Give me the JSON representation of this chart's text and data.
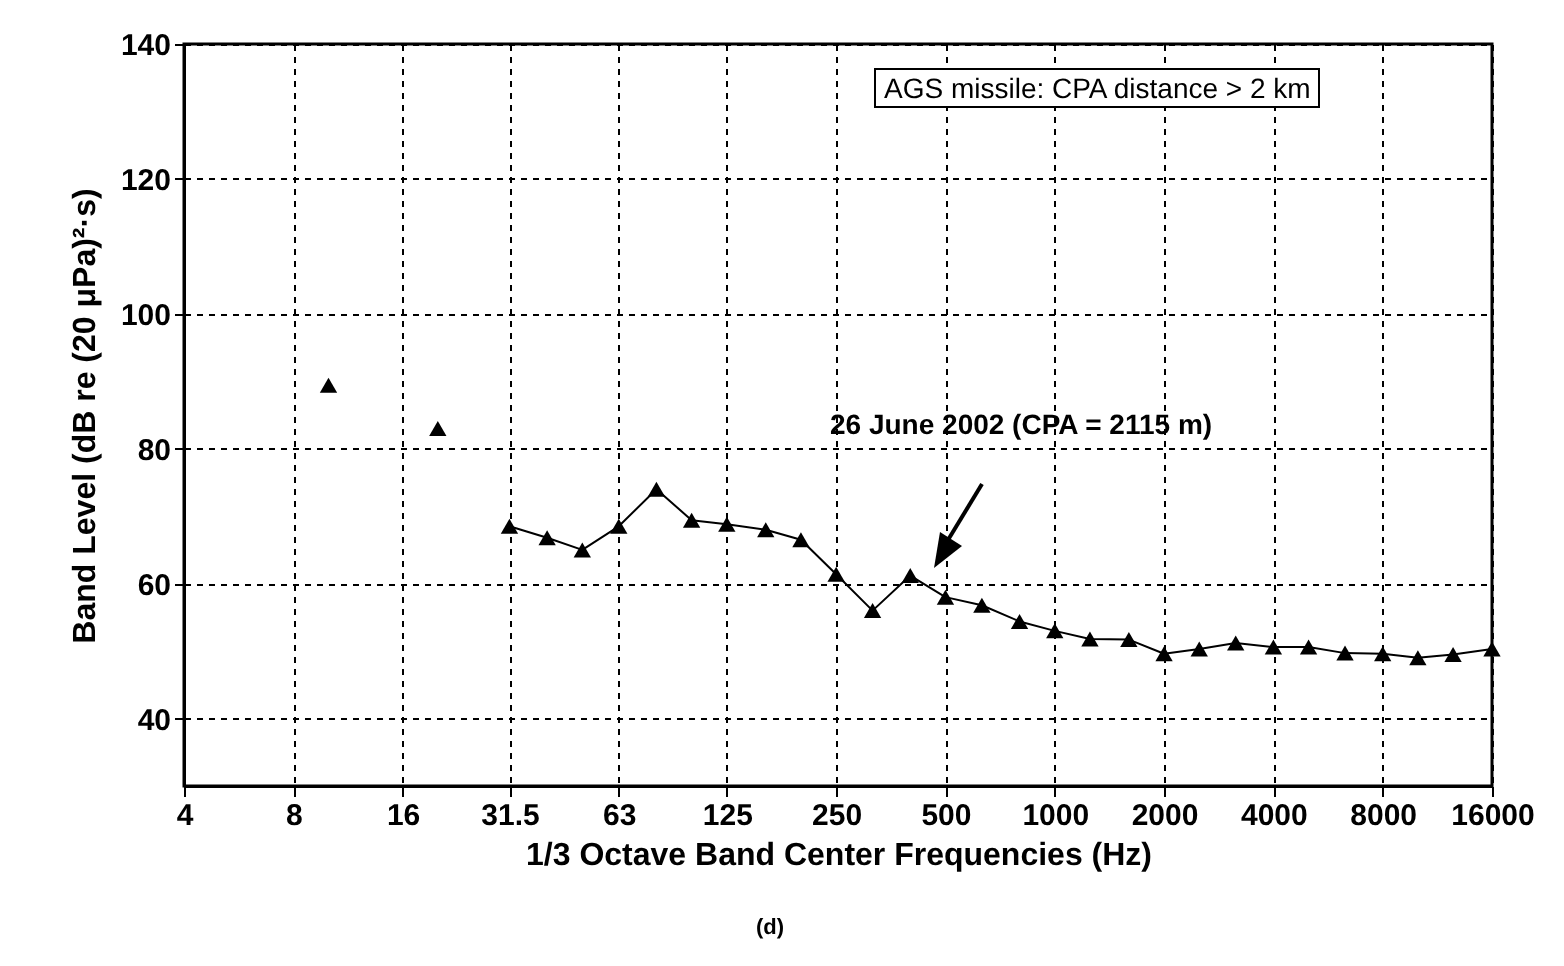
{
  "chart_data": {
    "type": "line",
    "xlabel": "1/3 Octave Band Center Frequencies (Hz)",
    "ylabel": "Band Level (dB re (20 μPa)²·s)",
    "annotations": [
      "AGS missile: CPA distance > 2 km",
      "26 June 2002 (CPA = 2115 m)",
      "(d)"
    ],
    "log": "x",
    "grid": true,
    "marker": "triangle",
    "line_style": "solid",
    "xlim": [
      4,
      16000
    ],
    "xticks": [
      4,
      8,
      16,
      31.5,
      63,
      125,
      250,
      500,
      1000,
      2000,
      4000,
      8000,
      16000
    ],
    "ylim": [
      30,
      140
    ],
    "yticks": [
      40,
      60,
      80,
      100,
      120,
      140
    ],
    "series": [
      {
        "type": "scatter",
        "color": "#000000",
        "x": [
          10,
          20
        ],
        "values": [
          89.4,
          83
        ]
      },
      {
        "color": "#000000",
        "x": [
          31.5,
          40,
          50,
          63,
          80,
          100,
          125,
          160,
          200,
          250,
          315,
          400,
          500,
          630,
          800,
          1000,
          1250,
          1600,
          2000,
          2500,
          3150,
          4000,
          5000,
          6300,
          8000,
          10000,
          12500,
          16000
        ],
        "values": [
          68.5,
          66.8,
          65,
          68.5,
          74,
          69.4,
          68.8,
          68,
          66.5,
          61.4,
          56,
          61.2,
          58,
          56.8,
          54.4,
          53,
          51.8,
          51.7,
          49.6,
          50.3,
          51.2,
          50.6,
          50.6,
          49.7,
          49.6,
          49,
          49.5,
          50.3
        ]
      }
    ]
  }
}
